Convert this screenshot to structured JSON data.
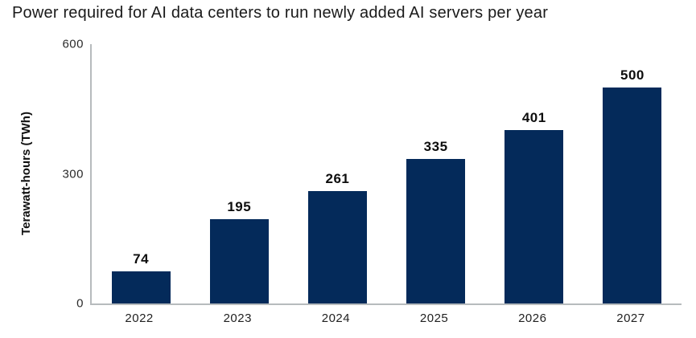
{
  "chart_data": {
    "type": "bar",
    "title": "Power required for AI data centers to run newly added AI servers per year",
    "categories": [
      "2022",
      "2023",
      "2024",
      "2025",
      "2026",
      "2027"
    ],
    "values": [
      74,
      195,
      261,
      335,
      401,
      500
    ],
    "xlabel": "",
    "ylabel": "Terawatt-hours (TWh)",
    "ylim": [
      0,
      600
    ],
    "yticks": [
      0,
      300,
      600
    ],
    "grid": false,
    "legend_position": "none",
    "bar_color": "#042a5a"
  },
  "colors": {
    "bar": "#042a5a",
    "axis_line": "#b7bbbd",
    "title_text": "#1a1a1a",
    "label_text": "#0d0d0d"
  }
}
